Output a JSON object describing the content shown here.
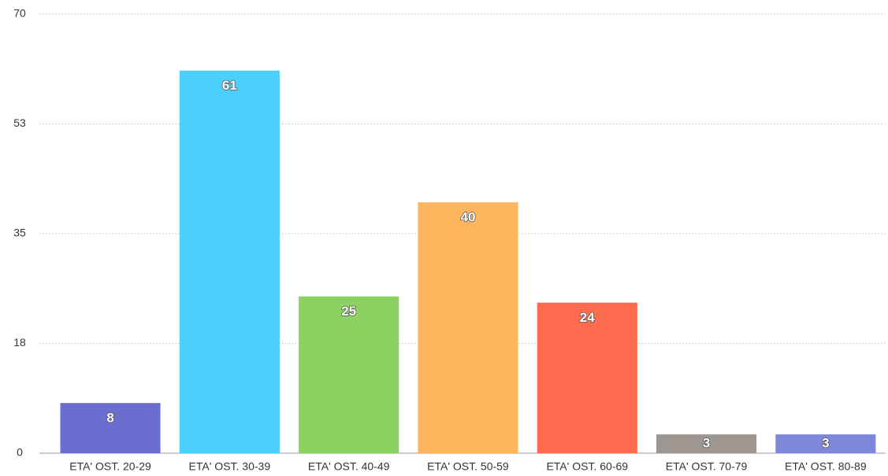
{
  "chart_data": {
    "type": "bar",
    "categories": [
      "ETA' OST. 20-29",
      "ETA' OST. 30-39",
      "ETA' OST. 40-49",
      "ETA' OST. 50-59",
      "ETA' OST. 60-69",
      "ETA' OST. 70-79",
      "ETA' OST. 80-89"
    ],
    "values": [
      8,
      61,
      25,
      40,
      24,
      3,
      3
    ],
    "colors": [
      "#6a6fcf",
      "#4dcffc",
      "#8ed163",
      "#fdb55e",
      "#ff6b4f",
      "#9e9691",
      "#7f87d9"
    ],
    "ylim": [
      0,
      70
    ],
    "yticks": [
      0,
      {
        "value": 17.5,
        "label": "18"
      },
      35,
      {
        "value": 52.5,
        "label": "53"
      },
      70
    ],
    "grid": true
  }
}
